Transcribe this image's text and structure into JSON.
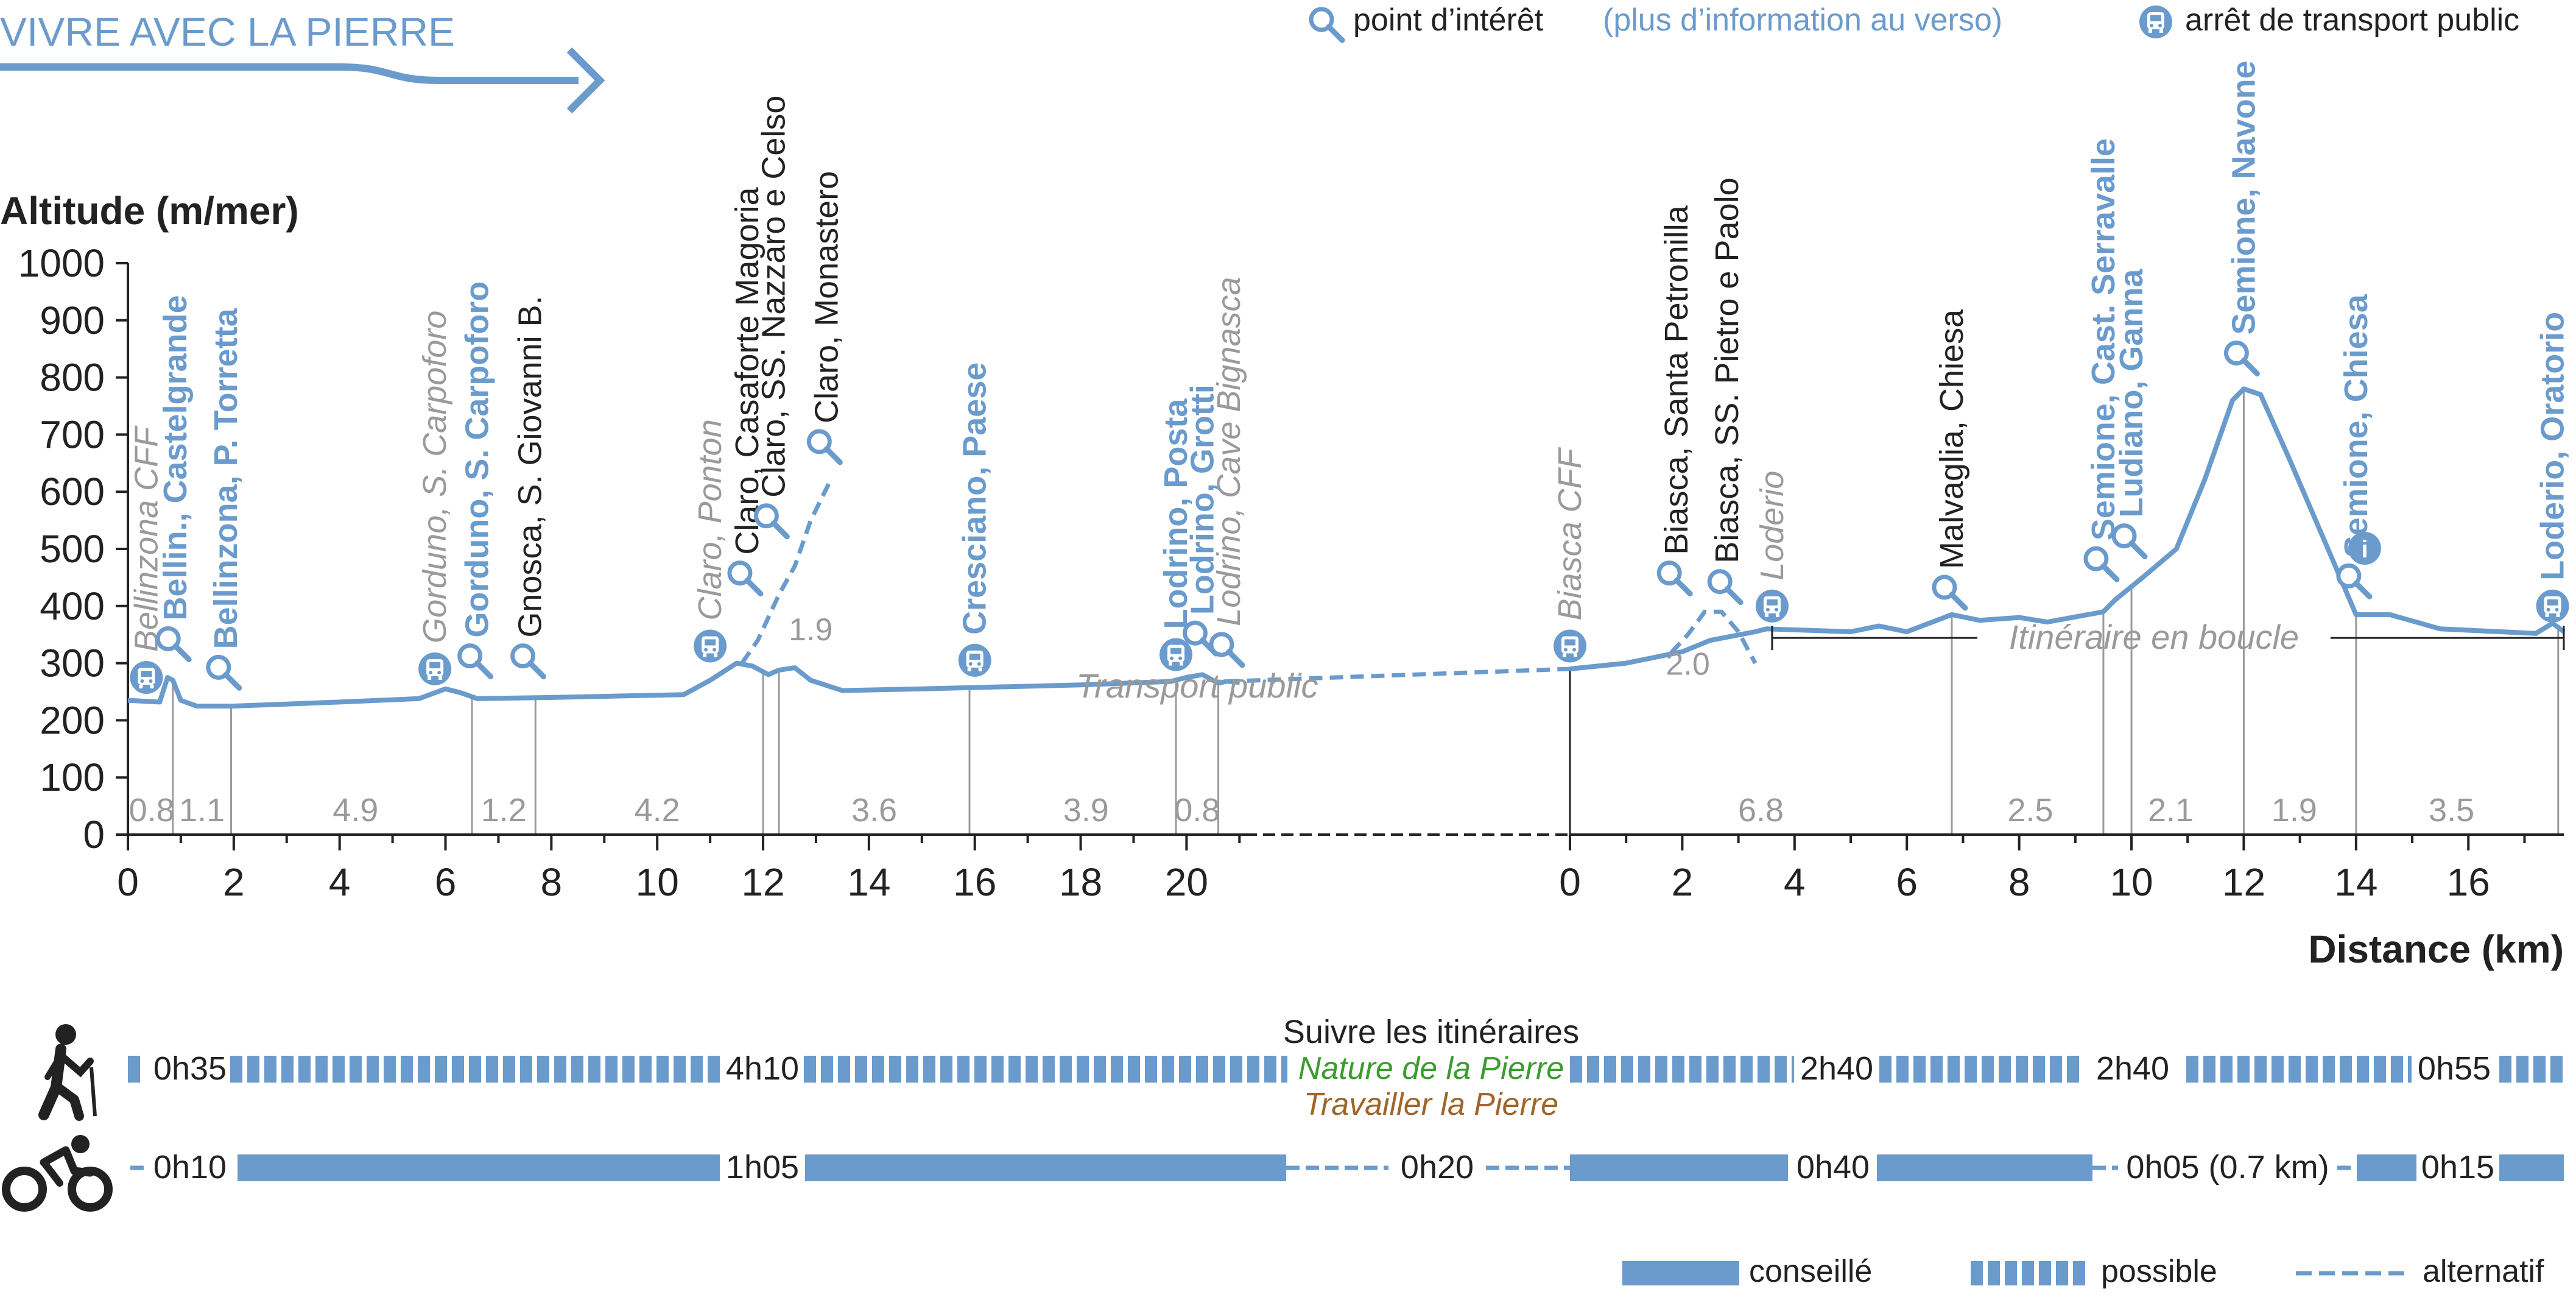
{
  "header": {
    "title": "VIVRE AVEC LA PIERRE",
    "poi_legend": "point d’intérêt",
    "poi_legend_extra": "(plus d’information au verso)",
    "transport_legend": "arrêt de transport public"
  },
  "colors": {
    "brand": "#6a9bcc",
    "profile": "#6a9bcc",
    "grey": "#9a9a9a",
    "dark": "#222222",
    "green": "#3a9c2e",
    "brown": "#a0652a"
  },
  "chart_data": {
    "type": "line",
    "ylabel": "Altitude (m/mer)",
    "xlabel": "Distance (km)",
    "ylim": [
      0,
      1000
    ],
    "yticks": [
      0,
      100,
      200,
      300,
      400,
      500,
      600,
      700,
      800,
      900,
      1000
    ],
    "grid": false,
    "segments": [
      {
        "name": "",
        "xlim": [
          0,
          21.1
        ],
        "xticks": [
          0,
          2,
          4,
          6,
          8,
          10,
          12,
          14,
          16,
          18,
          20
        ],
        "xtick_labels": [
          "0",
          "2",
          "4",
          "6",
          "8",
          "10",
          "12",
          "14",
          "16",
          "18",
          "20"
        ],
        "profile": [
          [
            0,
            235
          ],
          [
            0.6,
            232
          ],
          [
            0.75,
            275
          ],
          [
            0.85,
            270
          ],
          [
            1.0,
            235
          ],
          [
            1.3,
            225
          ],
          [
            2,
            225
          ],
          [
            4,
            232
          ],
          [
            5.5,
            238
          ],
          [
            6.0,
            255
          ],
          [
            6.3,
            248
          ],
          [
            6.6,
            238
          ],
          [
            8,
            240
          ],
          [
            10.5,
            245
          ],
          [
            11.0,
            270
          ],
          [
            11.5,
            300
          ],
          [
            11.8,
            295
          ],
          [
            12.1,
            280
          ],
          [
            12.3,
            288
          ],
          [
            12.6,
            292
          ],
          [
            12.9,
            270
          ],
          [
            13.5,
            252
          ],
          [
            15,
            255
          ],
          [
            18,
            262
          ],
          [
            19.7,
            268
          ],
          [
            20.0,
            275
          ],
          [
            20.3,
            280
          ],
          [
            20.6,
            265
          ],
          [
            20.75,
            268
          ]
        ],
        "alternatives": [
          {
            "name": "Claro, Monastero",
            "points": [
              [
                11.6,
                300
              ],
              [
                11.9,
                340
              ],
              [
                12.3,
                420
              ],
              [
                12.6,
                470
              ],
              [
                12.9,
                550
              ],
              [
                13.3,
                625
              ]
            ]
          },
          {
            "name": "Transport public",
            "points": [
              [
                20.75,
                268
              ],
              [
                21.1,
                265
              ]
            ]
          }
        ],
        "distance_marks": [
          {
            "at": 0.45,
            "label": "0.8"
          },
          {
            "at": 1.4,
            "label": "1.1"
          },
          {
            "at": 4.3,
            "label": "4.9"
          },
          {
            "at": 7.1,
            "label": "1.2"
          },
          {
            "at": 10.0,
            "label": "4.2"
          },
          {
            "at": 14.1,
            "label": "3.6"
          },
          {
            "at": 18.1,
            "label": "3.9"
          },
          {
            "at": 20.2,
            "label": "0.8"
          }
        ],
        "dividers": [
          0.85,
          1.95,
          6.5,
          7.7,
          12.0,
          12.3,
          15.9,
          19.8,
          20.6
        ],
        "points": [
          {
            "x": 0.35,
            "alt": 275,
            "icon": "bus",
            "label": "Bellinzona CFF",
            "style": "grey-italic"
          },
          {
            "x": 0.9,
            "alt": 330,
            "icon": "poi",
            "label": "Bellin., Castelgrande",
            "style": "blue-bold"
          },
          {
            "x": 1.85,
            "alt": 280,
            "icon": "poi",
            "label": "Bellinzona, P. Torretta",
            "style": "blue-bold"
          },
          {
            "x": 5.8,
            "alt": 290,
            "icon": "bus",
            "label": "Gorduno, S. Carpoforo",
            "style": "grey-italic"
          },
          {
            "x": 6.6,
            "alt": 300,
            "icon": "poi",
            "label": "Gorduno, S. Carpoforo",
            "style": "blue-bold"
          },
          {
            "x": 7.6,
            "alt": 300,
            "icon": "poi",
            "label": "Gnosca, S. Giovanni B.",
            "style": "dark"
          },
          {
            "x": 11.0,
            "alt": 330,
            "icon": "bus",
            "label": "Claro, Ponton",
            "style": "grey-italic"
          },
          {
            "x": 11.7,
            "alt": 445,
            "icon": "poi",
            "label": "Claro, Casaforte Magoria",
            "style": "dark"
          },
          {
            "x": 12.2,
            "alt": 545,
            "icon": "poi",
            "label": "Claro, SS. Nazzaro e Celso",
            "style": "dark"
          },
          {
            "x": 13.2,
            "alt": 675,
            "icon": "poi",
            "label": "Claro, Monastero",
            "style": "dark"
          },
          {
            "x": 16.0,
            "alt": 305,
            "icon": "bus",
            "label": "Cresciano, Paese",
            "style": "blue-bold"
          },
          {
            "x": 19.8,
            "alt": 315,
            "icon": "bus",
            "label": "Lodrino, Posta",
            "style": "blue-bold"
          },
          {
            "x": 20.3,
            "alt": 340,
            "icon": "poi",
            "label": "Lodrino, Grotti",
            "style": "blue-bold"
          },
          {
            "x": 20.8,
            "alt": 320,
            "icon": "poi",
            "label": "Lodrino, Cave Bignasca",
            "style": "grey-italic"
          }
        ],
        "annotations": [
          {
            "text": "1.9",
            "x": 12.9,
            "alt": 340
          },
          {
            "text": "Transport public",
            "x": 20.2,
            "alt": 240
          }
        ]
      },
      {
        "name": "",
        "xlim": [
          0,
          17.7
        ],
        "xticks": [
          0,
          2,
          4,
          6,
          8,
          10,
          12,
          14,
          16
        ],
        "xtick_labels": [
          "0",
          "2",
          "4",
          "6",
          "8",
          "10",
          "12",
          "14",
          "16"
        ],
        "profile": [
          [
            0,
            290
          ],
          [
            1.0,
            300
          ],
          [
            2.0,
            320
          ],
          [
            2.5,
            340
          ],
          [
            3.3,
            355
          ],
          [
            3.5,
            360
          ],
          [
            5,
            355
          ],
          [
            5.5,
            365
          ],
          [
            6,
            355
          ],
          [
            6.8,
            385
          ],
          [
            7.3,
            375
          ],
          [
            8,
            380
          ],
          [
            8.5,
            372
          ],
          [
            9.5,
            390
          ],
          [
            9.7,
            410
          ],
          [
            10.2,
            450
          ],
          [
            10.8,
            500
          ],
          [
            11.3,
            620
          ],
          [
            11.8,
            760
          ],
          [
            12.0,
            780
          ],
          [
            12.3,
            770
          ],
          [
            12.8,
            660
          ],
          [
            13.5,
            500
          ],
          [
            14.0,
            385
          ],
          [
            14.6,
            385
          ],
          [
            15.5,
            360
          ],
          [
            17.2,
            352
          ],
          [
            17.5,
            370
          ],
          [
            17.7,
            355
          ]
        ],
        "alternatives": [
          {
            "name": "Biasca, SS. Pietro e Paolo",
            "points": [
              [
                1.8,
                318
              ],
              [
                2.1,
                350
              ],
              [
                2.4,
                390
              ],
              [
                2.7,
                390
              ],
              [
                3.0,
                355
              ],
              [
                3.3,
                300
              ]
            ]
          }
        ],
        "distance_marks": [
          {
            "at": 3.4,
            "label": "6.8"
          },
          {
            "at": 8.2,
            "label": "2.5"
          },
          {
            "at": 10.7,
            "label": "2.1"
          },
          {
            "at": 12.9,
            "label": "1.9"
          },
          {
            "at": 15.7,
            "label": "3.5"
          }
        ],
        "dividers": [
          6.8,
          9.5,
          10.0,
          12.0,
          14.0,
          17.6
        ],
        "points": [
          {
            "x": 0,
            "alt": 330,
            "icon": "bus",
            "label": "Biasca CFF",
            "style": "grey-italic"
          },
          {
            "x": 1.9,
            "alt": 445,
            "icon": "poi",
            "label": "Biasca, Santa Petronilla",
            "style": "dark"
          },
          {
            "x": 2.8,
            "alt": 430,
            "icon": "poi",
            "label": "Biasca, SS. Pietro e Paolo",
            "style": "dark"
          },
          {
            "x": 3.6,
            "alt": 400,
            "icon": "bus",
            "label": "Loderio",
            "style": "grey-italic"
          },
          {
            "x": 6.8,
            "alt": 420,
            "icon": "poi",
            "label": "Malvaglia, Chiesa",
            "style": "dark"
          },
          {
            "x": 9.5,
            "alt": 470,
            "icon": "poi",
            "label": "Semione, Cast. Serravalle",
            "style": "blue-bold"
          },
          {
            "x": 10.0,
            "alt": 510,
            "icon": "poi",
            "label": "Ludiano, Ganna",
            "style": "blue-bold"
          },
          {
            "x": 12.0,
            "alt": 830,
            "icon": "poi",
            "label": "Semione, Navone",
            "style": "blue-bold"
          },
          {
            "x": 14.0,
            "alt": 440,
            "icon": "poi",
            "label": "Semione, Chiesa",
            "style": "blue-bold"
          },
          {
            "x": 17.5,
            "alt": 400,
            "icon": "bus",
            "label": "Loderio, Oratorio",
            "style": "blue-bold"
          }
        ],
        "annotations": [
          {
            "text": "2.0",
            "x": 2.1,
            "alt": 280
          },
          {
            "text": "Itinéraire en boucle",
            "x": 10.4,
            "alt": 325
          }
        ]
      }
    ]
  },
  "durations": {
    "follow_title": "Suivre les itinéraires",
    "nature_label": "Nature de la Pierre",
    "work_label": "Travailler la Pierre",
    "walk": [
      {
        "label": "0h35"
      },
      {
        "label": "4h10"
      },
      {
        "label": "2h40"
      },
      {
        "label": "2h40"
      },
      {
        "label": "0h55"
      }
    ],
    "bike": [
      {
        "label": "0h10"
      },
      {
        "label": "1h05"
      },
      {
        "label": "0h20"
      },
      {
        "label": "0h40"
      },
      {
        "label": "0h05 (0.7 km)"
      },
      {
        "label": "0h15"
      }
    ]
  },
  "legend": {
    "recommended": "conseillé",
    "possible": "possible",
    "alternative": "alternatif"
  }
}
